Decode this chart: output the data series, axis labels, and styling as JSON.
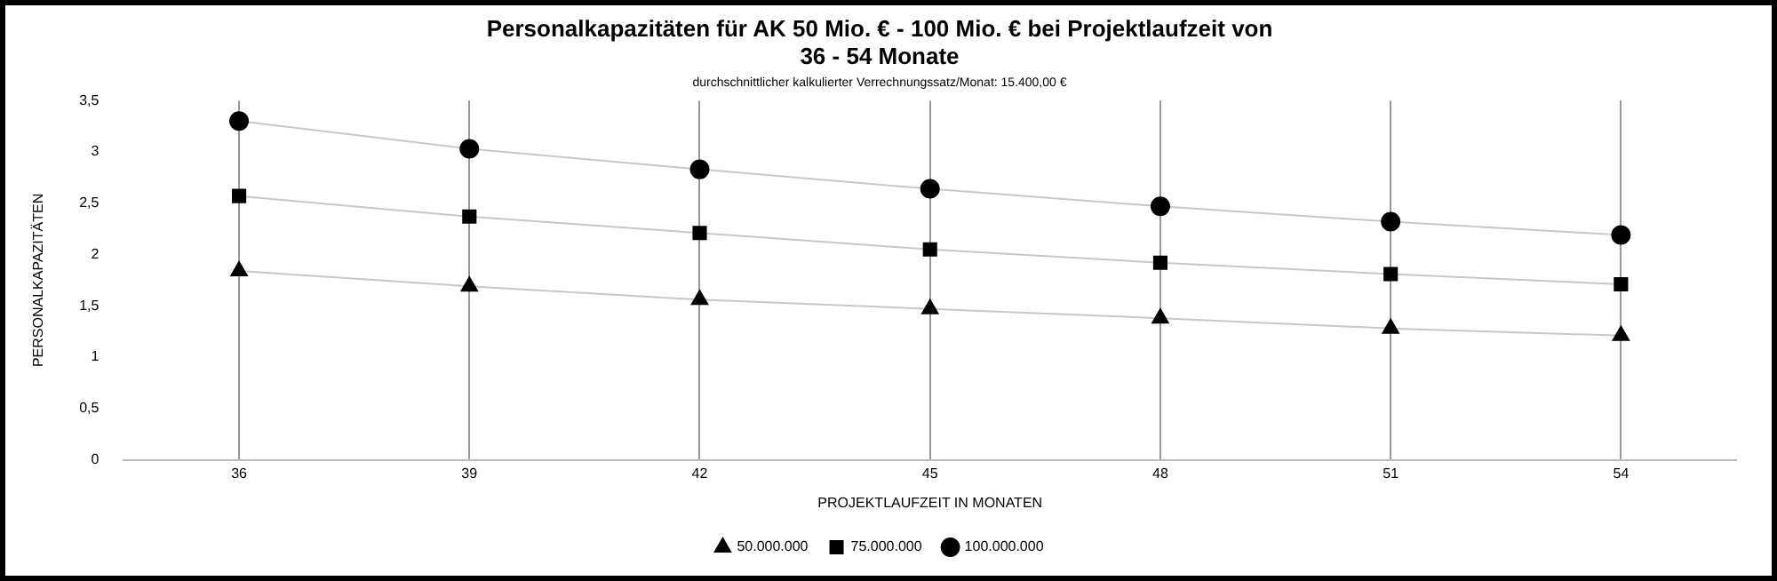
{
  "chart_data": {
    "type": "line",
    "title": "Personalkapazitäten für AK 50 Mio. € - 100 Mio. € bei Projektlaufzeit von\n36 - 54 Monate",
    "subtitle": "durchschnittlicher kalkulierter Verrechnungssatz/Monat: 15.400,00 €",
    "xlabel": "PROJEKTLAUFZEIT IN MONATEN",
    "ylabel": "PERSONALKAPAZITÄTEN",
    "categories": [
      "36",
      "39",
      "42",
      "45",
      "48",
      "51",
      "54"
    ],
    "series": [
      {
        "name": "50.000.000",
        "color": "#000000",
        "marker": "triangle",
        "values": [
          1.84,
          1.69,
          1.56,
          1.47,
          1.38,
          1.28,
          1.21
        ]
      },
      {
        "name": "75.000.000",
        "color": "#000000",
        "marker": "square",
        "values": [
          2.57,
          2.37,
          2.21,
          2.05,
          1.92,
          1.81,
          1.71
        ]
      },
      {
        "name": "100.000.000",
        "color": "#000000",
        "marker": "circle",
        "values": [
          3.3,
          3.03,
          2.83,
          2.64,
          2.47,
          2.32,
          2.19
        ]
      }
    ],
    "ylim": [
      0,
      3.5
    ],
    "yticks": [
      {
        "value": 0,
        "label": "0"
      },
      {
        "value": 0.5,
        "label": "0,5"
      },
      {
        "value": 1,
        "label": "1"
      },
      {
        "value": 1.5,
        "label": "1,5"
      },
      {
        "value": 2,
        "label": "2"
      },
      {
        "value": 2.5,
        "label": "2,5"
      },
      {
        "value": 3,
        "label": "3"
      },
      {
        "value": 3.5,
        "label": "3,5"
      }
    ],
    "grid": "x",
    "legend": "bottom",
    "line_style": "solid"
  }
}
